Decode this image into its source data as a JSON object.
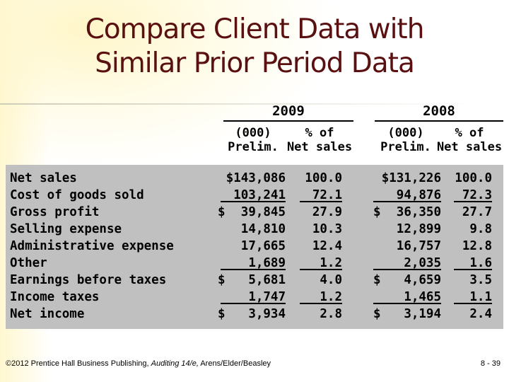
{
  "title": {
    "line1": "Compare Client Data with",
    "line2": "Similar Prior Period Data"
  },
  "columns": {
    "y2009": {
      "year": "2009",
      "amt_hdr1": "(000)",
      "amt_hdr2": "Prelim.",
      "pct_hdr1": "% of",
      "pct_hdr2": "Net sales"
    },
    "y2008": {
      "year": "2008",
      "amt_hdr1": "(000)",
      "amt_hdr2": "Prelim.",
      "pct_hdr1": "% of",
      "pct_hdr2": "Net sales"
    }
  },
  "rows": [
    {
      "label": "Net sales",
      "amt2009": "$143,086",
      "pct2009": "100.0",
      "amt2008": "$131,226",
      "pct2008": "100.0"
    },
    {
      "label": "Cost of goods sold",
      "amt2009": "103,241",
      "pct2009": "72.1",
      "amt2008": "94,876",
      "pct2008": "72.3"
    },
    {
      "label": "Gross profit",
      "amt2009": "39,845",
      "pct2009": "27.9",
      "amt2008": "36,350",
      "pct2008": "27.7"
    },
    {
      "label": "Selling expense",
      "amt2009": "14,810",
      "pct2009": "10.3",
      "amt2008": "12,899",
      "pct2008": "9.8"
    },
    {
      "label": "Administrative expense",
      "amt2009": "17,665",
      "pct2009": "12.4",
      "amt2008": "16,757",
      "pct2008": "12.8"
    },
    {
      "label": "Other",
      "amt2009": "1,689",
      "pct2009": "1.2",
      "amt2008": "2,035",
      "pct2008": "1.6"
    },
    {
      "label": "Earnings before taxes",
      "amt2009": "5,681",
      "pct2009": "4.0",
      "amt2008": "4,659",
      "pct2008": "3.5"
    },
    {
      "label": "Income taxes",
      "amt2009": "1,747",
      "pct2009": "1.2",
      "amt2008": "1,465",
      "pct2008": "1.1"
    },
    {
      "label": "Net income",
      "amt2009": "3,934",
      "pct2009": "2.8",
      "amt2008": "3,194",
      "pct2008": "2.4"
    }
  ],
  "dollar_sign": "$",
  "footer": {
    "pre": "©2012 Prentice Hall Business Publishing, ",
    "italic": "Auditing 14/e,",
    "post": " Arens/Elder/Beasley"
  },
  "page_number": "8 - 39"
}
